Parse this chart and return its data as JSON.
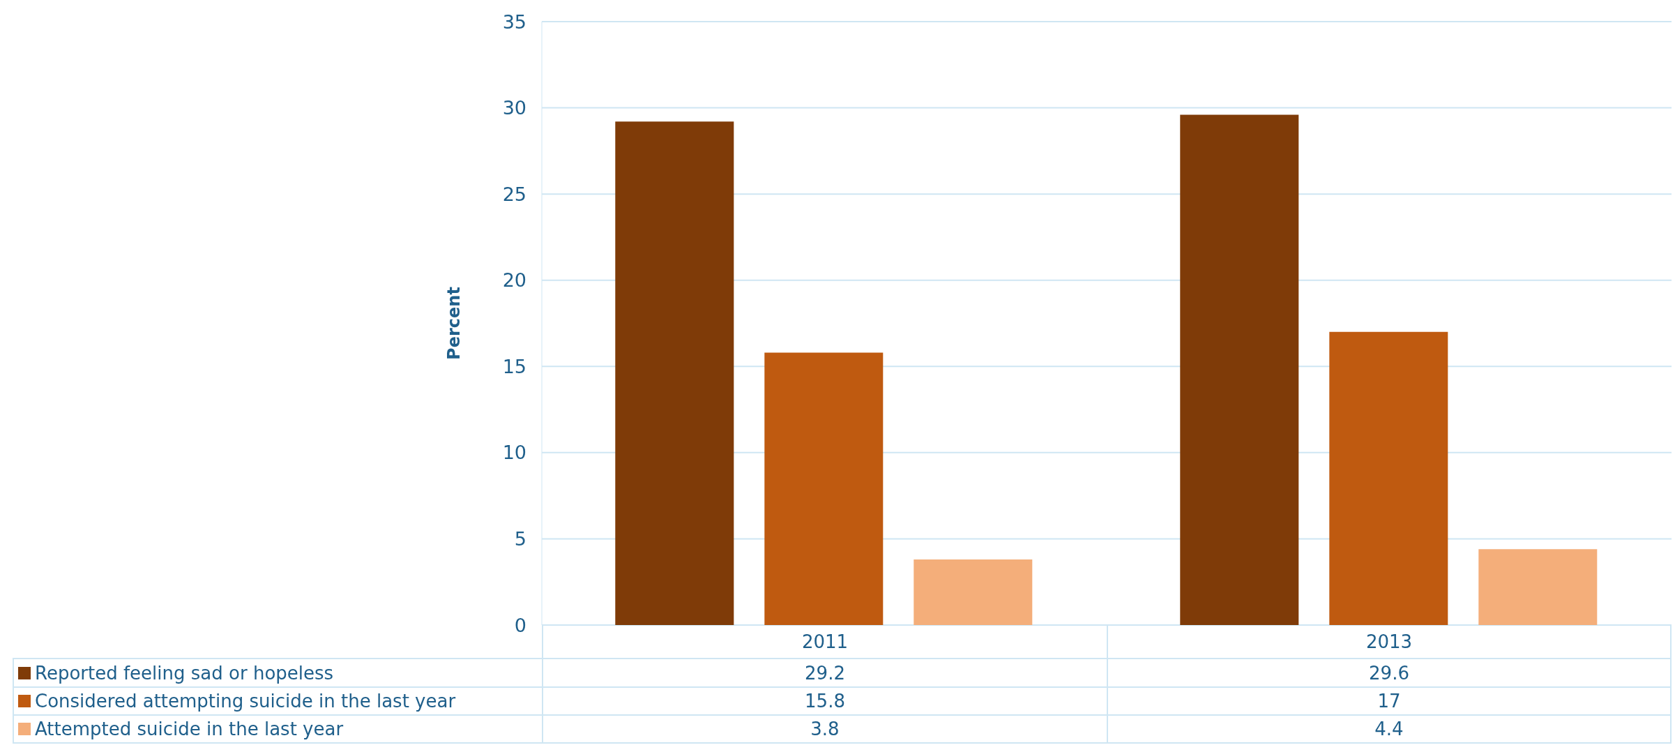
{
  "chart_data": {
    "type": "bar",
    "ylabel": "Percent",
    "categories": [
      "2011",
      "2013"
    ],
    "series": [
      {
        "name": "Reported feeling sad or hopeless",
        "color": "#7f3b08",
        "values": [
          29.2,
          29.6
        ]
      },
      {
        "name": "Considered attempting suicide in the last year",
        "color": "#bf5a10",
        "values": [
          15.8,
          17
        ]
      },
      {
        "name": "Attempted suicide in the last year",
        "color": "#f4ae7a",
        "values": [
          3.8,
          4.4
        ]
      }
    ],
    "ylim": [
      0,
      35
    ],
    "yticks": [
      0,
      5,
      10,
      15,
      20,
      25,
      30,
      35
    ],
    "grid": "y",
    "legend": "bottom",
    "data_labels": true
  }
}
